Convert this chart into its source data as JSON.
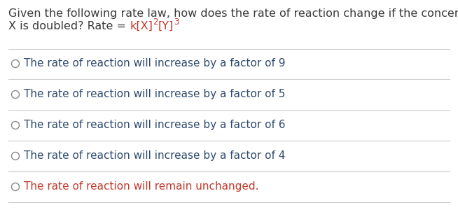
{
  "bg_color": "#ffffff",
  "question_line1": "Given the following rate law, how does the rate of reaction change if the concentration of",
  "question_line2_start": "X is doubled? Rate = ",
  "formula_part1": "k[X]",
  "formula_sup1": "2",
  "formula_part2": "[Y]",
  "formula_sup2": "3",
  "question_text_color": "#3a3a3a",
  "formula_color": "#c0392b",
  "options": [
    "The rate of reaction will increase by a factor of 9",
    "The rate of reaction will increase by a factor of 5",
    "The rate of reaction will increase by a factor of 6",
    "The rate of reaction will increase by a factor of 4",
    "The rate of reaction will remain unchanged."
  ],
  "option_text_color": "#2e4a6e",
  "last_option_color": "#c0392b",
  "circle_edge_color": "#888888",
  "divider_color": "#cccccc",
  "font_size_q": 11.5,
  "font_size_opt": 11.0,
  "font_size_sup": 8.5
}
